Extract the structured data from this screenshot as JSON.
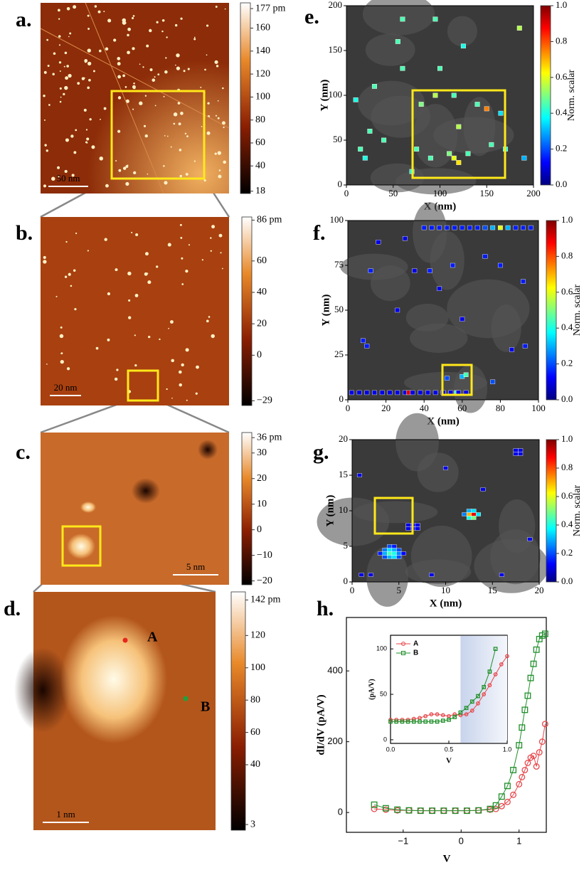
{
  "chart_data": [
    {
      "type": "image",
      "label": "a.",
      "scale_bar": "50 nm",
      "colorbar_lim": [
        16,
        182
      ],
      "colorbar_ticks": [
        {
          "value": 177,
          "label": "177 pm"
        },
        160,
        140,
        120,
        100,
        80,
        60,
        40,
        18
      ]
    },
    {
      "type": "image",
      "label": "b.",
      "scale_bar": "20 nm",
      "colorbar_lim": [
        -32,
        88
      ],
      "colorbar_ticks": [
        {
          "value": 86,
          "label": "86 pm"
        },
        60,
        40,
        20,
        0,
        {
          "value": -29,
          "label": "−29"
        }
      ]
    },
    {
      "type": "image",
      "label": "c.",
      "scale_bar": "5 nm",
      "colorbar_lim": [
        -21.5,
        38
      ],
      "colorbar_ticks": [
        {
          "value": 36,
          "label": "36 pm"
        },
        30,
        20,
        10,
        0,
        {
          "value": -10,
          "label": "−10"
        },
        {
          "value": -20,
          "label": "−20"
        }
      ]
    },
    {
      "type": "image",
      "label": "d.",
      "scale_bar": "1 nm",
      "colorbar_lim": [
        -0.5,
        147
      ],
      "colorbar_ticks": [
        {
          "value": 142,
          "label": "142 pm"
        },
        120,
        100,
        80,
        60,
        40,
        3
      ],
      "markers": [
        {
          "name": "A",
          "color": "#e8261d"
        },
        {
          "name": "B",
          "color": "#22a03c"
        }
      ]
    },
    {
      "type": "heatmap",
      "label": "e.",
      "x_label": "X (nm)",
      "y_label": "Y (nm)",
      "xlim": [
        0,
        200
      ],
      "xticks": [
        0,
        50,
        100,
        150,
        200
      ],
      "ylim": [
        0,
        200
      ],
      "yticks": [
        0,
        50,
        100,
        150,
        200
      ],
      "colorbar_label": "Norm. scalar",
      "colorbar_lim": [
        0,
        1
      ],
      "colorbar_ticks": [
        {
          "value": 0,
          "label": "0.0"
        },
        {
          "value": 0.2,
          "label": "0.2"
        },
        {
          "value": 0.4,
          "label": "0.4"
        },
        {
          "value": 0.6,
          "label": "0.6"
        },
        {
          "value": 0.8,
          "label": "0.8"
        },
        {
          "value": 1,
          "label": "1.0"
        }
      ],
      "cells": {
        "x": [
          10,
          15,
          20,
          25,
          30,
          40,
          55,
          60,
          75,
          80,
          90,
          95,
          100,
          110,
          115,
          120,
          125,
          115,
          130,
          140,
          150,
          155,
          165,
          170,
          185,
          190,
          60,
          95,
          120,
          70
        ],
        "y": [
          95,
          40,
          30,
          60,
          110,
          50,
          160,
          130,
          40,
          90,
          30,
          100,
          130,
          35,
          30,
          25,
          155,
          100,
          35,
          90,
          85,
          45,
          80,
          40,
          175,
          30,
          185,
          185,
          65,
          15
        ],
        "values": [
          0.4,
          0.45,
          0.4,
          0.45,
          0.45,
          0.45,
          0.45,
          0.45,
          0.45,
          0.5,
          0.45,
          0.55,
          0.45,
          0.5,
          0.6,
          0.65,
          0.4,
          0.45,
          0.45,
          0.45,
          0.75,
          0.45,
          0.35,
          0.4,
          0.55,
          0.3,
          0.45,
          0.45,
          0.55,
          0.4
        ]
      }
    },
    {
      "type": "heatmap",
      "label": "f.",
      "x_label": "X (nm)",
      "y_label": "Y (nm)",
      "xlim": [
        0,
        100
      ],
      "xticks": [
        0,
        20,
        40,
        60,
        80,
        100
      ],
      "ylim": [
        0,
        100
      ],
      "yticks": [
        0,
        25,
        50,
        75,
        100
      ],
      "colorbar_label": "Norm. scalar",
      "colorbar_lim": [
        0,
        1
      ],
      "colorbar_ticks": [
        {
          "value": 0,
          "label": "0.0"
        },
        {
          "value": 0.2,
          "label": "0.2"
        },
        {
          "value": 0.4,
          "label": "0.4"
        },
        {
          "value": 0.6,
          "label": "0.6"
        },
        {
          "value": 0.8,
          "label": "0.8"
        },
        {
          "value": 1,
          "label": "1.0"
        }
      ],
      "cells": {
        "x": [
          2,
          6,
          10,
          14,
          18,
          22,
          26,
          30,
          32,
          34,
          38,
          42,
          46,
          50,
          54,
          57,
          58,
          62,
          40,
          44,
          48,
          52,
          56,
          60,
          64,
          68,
          72,
          76,
          80,
          84,
          88,
          92,
          96,
          8,
          10,
          12,
          35,
          43,
          48,
          55,
          60,
          72,
          80,
          92,
          93,
          52,
          60,
          62,
          76,
          86,
          30,
          26,
          16
        ],
        "y": [
          4,
          4,
          4,
          4,
          4,
          4,
          4,
          4,
          4,
          4,
          4,
          4,
          4,
          4,
          4,
          4,
          4,
          4,
          96,
          96,
          96,
          96,
          96,
          96,
          96,
          96,
          96,
          96,
          96,
          96,
          96,
          96,
          96,
          33,
          30,
          72,
          72,
          72,
          62,
          75,
          45,
          80,
          75,
          66,
          30,
          12,
          13,
          14,
          10,
          28,
          90,
          50,
          88
        ],
        "values": [
          0.1,
          0.1,
          0.1,
          0.1,
          0.1,
          0.1,
          0.1,
          0.1,
          0.9,
          0.1,
          0.1,
          0.1,
          0.1,
          0.1,
          0.1,
          0.45,
          0.1,
          0.1,
          0.15,
          0.15,
          0.15,
          0.15,
          0.15,
          0.15,
          0.15,
          0.15,
          0.2,
          0.3,
          0.6,
          0.3,
          0.15,
          0.15,
          0.15,
          0.15,
          0.15,
          0.15,
          0.1,
          0.15,
          0.1,
          0.15,
          0.1,
          0.15,
          0.15,
          0.15,
          0.15,
          0.2,
          0.3,
          0.45,
          0.2,
          0.1,
          0.1,
          0.1,
          0.1
        ]
      }
    },
    {
      "type": "heatmap",
      "label": "g.",
      "x_label": "X (nm)",
      "y_label": "Y (nm)",
      "xlim": [
        0,
        20
      ],
      "xticks": [
        0,
        5,
        10,
        15,
        20
      ],
      "ylim": [
        0,
        20
      ],
      "yticks": [
        0,
        5,
        10,
        15,
        20
      ],
      "colorbar_label": "Norm. scalar",
      "colorbar_lim": [
        0,
        1
      ],
      "colorbar_ticks": [
        {
          "value": 0,
          "label": "0.0"
        },
        {
          "value": 0.2,
          "label": "0.2"
        },
        {
          "value": 0.4,
          "label": "0.4"
        },
        {
          "value": 0.6,
          "label": "0.6"
        },
        {
          "value": 0.8,
          "label": "0.8"
        },
        {
          "value": 1,
          "label": "1.0"
        }
      ],
      "cells": {
        "x": [
          3.5,
          4,
          4.5,
          5,
          3.5,
          4,
          4.5,
          5,
          3.5,
          4,
          4.5,
          5,
          4,
          4.5,
          3,
          5.5,
          6,
          6.5,
          7,
          6,
          6.5,
          7,
          12.5,
          13,
          12.5,
          13,
          13.5,
          12,
          12.5,
          13,
          17.5,
          18,
          17.5,
          18,
          1,
          2,
          8.5,
          16,
          19,
          10,
          0.8,
          14
        ],
        "y": [
          3.5,
          3.5,
          3.5,
          3.5,
          4,
          4,
          4,
          4,
          4.5,
          4.5,
          4.5,
          4.5,
          5,
          5,
          4,
          4,
          7.5,
          7.5,
          7.5,
          8,
          8,
          8,
          9.5,
          9.5,
          9,
          9,
          9.5,
          9.5,
          10,
          10,
          18,
          18,
          18.5,
          18.5,
          1,
          1,
          1,
          1,
          6,
          16,
          15,
          13
        ],
        "values": [
          0.2,
          0.3,
          0.35,
          0.2,
          0.3,
          0.45,
          0.4,
          0.25,
          0.25,
          0.35,
          0.3,
          0.2,
          0.2,
          0.15,
          0.15,
          0.12,
          0.1,
          0.1,
          0.1,
          0.1,
          0.1,
          0.1,
          0.7,
          0.9,
          0.4,
          0.5,
          0.35,
          0.25,
          0.3,
          0.35,
          0.1,
          0.1,
          0.1,
          0.1,
          0.1,
          0.1,
          0.1,
          0.1,
          0.1,
          0.1,
          0.1,
          0.1
        ]
      }
    },
    {
      "type": "line",
      "label": "h.",
      "x_label": "V",
      "y_label": "dI/dV (pA/V)",
      "xlim": [
        -1.98,
        1.47
      ],
      "xticks": [
        {
          "value": -1,
          "label": "−1"
        },
        0,
        1
      ],
      "ylim": [
        -56,
        551
      ],
      "yticks": [
        0,
        200,
        400
      ],
      "x": [
        -1.5,
        -1.3,
        -1.1,
        -0.9,
        -0.7,
        -0.5,
        -0.3,
        -0.1,
        0.1,
        0.3,
        0.5,
        0.6,
        0.7,
        0.8,
        0.9,
        1.0,
        1.05,
        1.1,
        1.15,
        1.2,
        1.25,
        1.3,
        1.35,
        1.4,
        1.45
      ],
      "series": [
        {
          "name": "A",
          "color": "#e8464a",
          "values": [
            10,
            8,
            6,
            6,
            5,
            5,
            5,
            5,
            5,
            6,
            8,
            10,
            18,
            30,
            50,
            80,
            100,
            120,
            140,
            155,
            160,
            130,
            170,
            200,
            250
          ]
        },
        {
          "name": "B",
          "color": "#1f8f2a",
          "values": [
            22,
            12,
            8,
            6,
            5,
            5,
            5,
            5,
            5,
            6,
            10,
            20,
            45,
            75,
            120,
            190,
            240,
            290,
            330,
            380,
            420,
            460,
            490,
            500,
            505
          ]
        }
      ],
      "inset": {
        "x_label": "V",
        "y_label": "(pA/V)",
        "xlim": [
          0,
          1.0
        ],
        "xticks": [
          {
            "value": 0,
            "label": "0.0"
          },
          {
            "value": 0.5,
            "label": "0.5"
          },
          {
            "value": 1,
            "label": "1.0"
          }
        ],
        "ylim": [
          -4,
          115
        ],
        "yticks": [
          0,
          50,
          100
        ],
        "shade": [
          0.6,
          1.0
        ],
        "x": [
          0,
          0.05,
          0.1,
          0.15,
          0.2,
          0.25,
          0.3,
          0.35,
          0.4,
          0.45,
          0.5,
          0.55,
          0.6,
          0.65,
          0.7,
          0.75,
          0.8,
          0.85,
          0.9,
          0.95,
          1.0
        ],
        "series": [
          {
            "name": "A",
            "color": "#e8464a",
            "values": [
              22,
              22,
              22,
              22,
              23,
              24,
              26,
              28,
              28,
              27,
              26,
              28,
              27,
              28,
              32,
              40,
              50,
              60,
              72,
              83,
              92
            ]
          },
          {
            "name": "B",
            "color": "#1f8f2a",
            "values": [
              20,
              20,
              20,
              20,
              20,
              20,
              20,
              20,
              20,
              21,
              22,
              25,
              30,
              35,
              42,
              48,
              58,
              75,
              100,
              null,
              null
            ]
          }
        ]
      }
    }
  ]
}
